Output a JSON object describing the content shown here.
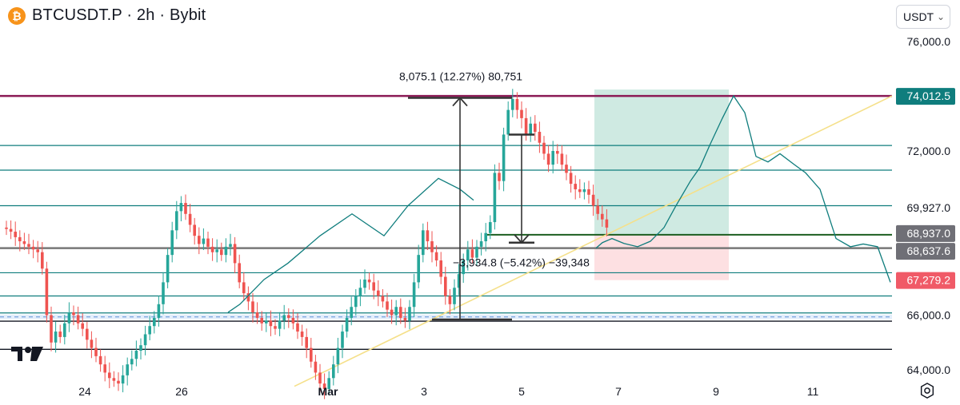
{
  "header": {
    "symbol_icon": "bitcoin-icon",
    "title": "BTCUSDT.P · 2h · Bybit"
  },
  "currency_selector": {
    "label": "USDT",
    "icon": "chevron-down-icon"
  },
  "settings_icon": "gear-icon",
  "colors": {
    "up": "#26a69a",
    "down": "#ef5350",
    "level": "#0f7d7d",
    "magenta": "#8b1a55",
    "trend": "#f5e08a",
    "target_zone": "#cfeae2",
    "stop_zone": "#fde0e2",
    "green_line": "#1b5e20",
    "dark": "#131722"
  },
  "chart_data": {
    "type": "candlestick",
    "x_tick_labels": [
      "24",
      "26",
      "Mar",
      "3",
      "5",
      "7",
      "9",
      "11"
    ],
    "y_tick_labels": [
      "76,000.0",
      "72,000.0",
      "69,927.0",
      "66,000.0",
      "64,000.0"
    ],
    "ylim": [
      63200,
      77200
    ],
    "price_badges": [
      {
        "label": "74,012.5",
        "value": 74012.5,
        "kind": "level"
      },
      {
        "label": "68,937.0",
        "value": 68937.0,
        "kind": "grey"
      },
      {
        "label": "68,637.6",
        "value": 68637.6,
        "kind": "grey"
      },
      {
        "label": "67,279.2",
        "value": 67279.2,
        "kind": "stop"
      }
    ],
    "horizontal_levels": [
      {
        "value": 74012.5,
        "color": "magenta"
      },
      {
        "value": 72200,
        "color": "level"
      },
      {
        "value": 71300,
        "color": "level"
      },
      {
        "value": 70000,
        "color": "level"
      },
      {
        "value": 68937.0,
        "color": "green"
      },
      {
        "value": 68450,
        "color": "grey"
      },
      {
        "value": 67550,
        "color": "level"
      },
      {
        "value": 66700,
        "color": "level"
      },
      {
        "value": 66080,
        "color": "level"
      },
      {
        "value": 65780,
        "color": "dark"
      },
      {
        "value": 64750,
        "color": "dark"
      }
    ],
    "support_band": [
      65850,
      66020
    ],
    "measure_up": {
      "label": "8,075.1 (12.27%) 80,751",
      "from": 65840,
      "to": 73940
    },
    "measure_down": {
      "label": "−3,934.8 (−5.42%) −39,348",
      "from": 72600,
      "to": 68650
    },
    "position": {
      "entry": 68937.0,
      "target": 74012.5,
      "stop": 67279.2
    },
    "candles": [
      [
        69200,
        69150
      ],
      [
        69150,
        69050
      ],
      [
        69050,
        68850
      ],
      [
        68850,
        68700
      ],
      [
        68700,
        68600
      ],
      [
        68600,
        68500
      ],
      [
        68500,
        68400
      ],
      [
        68400,
        68300
      ],
      [
        68300,
        67700
      ],
      [
        67700,
        66000
      ],
      [
        66000,
        65000
      ],
      [
        65000,
        65400
      ],
      [
        65400,
        65200
      ],
      [
        65200,
        65700
      ],
      [
        65700,
        66100
      ],
      [
        66100,
        66000
      ],
      [
        66000,
        65700
      ],
      [
        65700,
        65500
      ],
      [
        65500,
        65100
      ],
      [
        65100,
        64800
      ],
      [
        64800,
        64500
      ],
      [
        64500,
        64200
      ],
      [
        64200,
        63900
      ],
      [
        63900,
        63700
      ],
      [
        63700,
        63600
      ],
      [
        63600,
        63500
      ],
      [
        63500,
        63800
      ],
      [
        63800,
        64200
      ],
      [
        64200,
        64400
      ],
      [
        64400,
        64700
      ],
      [
        64700,
        64900
      ],
      [
        64900,
        65300
      ],
      [
        65300,
        65600
      ],
      [
        65600,
        65900
      ],
      [
        65900,
        66400
      ],
      [
        66400,
        67200
      ],
      [
        67200,
        68200
      ],
      [
        68200,
        69100
      ],
      [
        69100,
        69800
      ],
      [
        69800,
        70100
      ],
      [
        70100,
        69700
      ],
      [
        69700,
        69300
      ],
      [
        69300,
        68900
      ],
      [
        68900,
        68600
      ],
      [
        68600,
        68800
      ],
      [
        68800,
        68500
      ],
      [
        68500,
        68300
      ],
      [
        68300,
        68400
      ],
      [
        68400,
        68200
      ],
      [
        68200,
        68500
      ],
      [
        68500,
        68600
      ],
      [
        68600,
        67900
      ],
      [
        67900,
        67200
      ],
      [
        67200,
        66800
      ],
      [
        66800,
        66500
      ],
      [
        66500,
        66100
      ],
      [
        66100,
        65900
      ],
      [
        65900,
        65700
      ],
      [
        65700,
        65800
      ],
      [
        65800,
        65600
      ],
      [
        65600,
        65500
      ],
      [
        65500,
        65800
      ],
      [
        65800,
        66000
      ],
      [
        66000,
        65900
      ],
      [
        65900,
        65700
      ],
      [
        65700,
        65400
      ],
      [
        65400,
        65200
      ],
      [
        65200,
        64800
      ],
      [
        64800,
        64300
      ],
      [
        64300,
        63900
      ],
      [
        63900,
        63500
      ],
      [
        63500,
        63300
      ],
      [
        63300,
        63700
      ],
      [
        63700,
        64200
      ],
      [
        64200,
        64800
      ],
      [
        64800,
        65400
      ],
      [
        65400,
        65900
      ],
      [
        65900,
        66300
      ],
      [
        66300,
        66700
      ],
      [
        66700,
        67000
      ],
      [
        67000,
        67300
      ],
      [
        67300,
        67200
      ],
      [
        67200,
        66900
      ],
      [
        66900,
        66700
      ],
      [
        66700,
        66500
      ],
      [
        66500,
        66200
      ],
      [
        66200,
        66000
      ],
      [
        66000,
        66300
      ],
      [
        66300,
        65900
      ],
      [
        65900,
        65800
      ],
      [
        65800,
        66300
      ],
      [
        66300,
        67200
      ],
      [
        67200,
        68200
      ],
      [
        68200,
        69100
      ],
      [
        69100,
        68700
      ],
      [
        68700,
        68300
      ],
      [
        68300,
        68000
      ],
      [
        68000,
        67400
      ],
      [
        67400,
        66700
      ],
      [
        66700,
        66400
      ],
      [
        66400,
        67000
      ],
      [
        67000,
        67500
      ],
      [
        67500,
        68000
      ],
      [
        68000,
        68400
      ],
      [
        68400,
        68100
      ],
      [
        68100,
        68500
      ],
      [
        68500,
        68700
      ],
      [
        68700,
        69000
      ],
      [
        69000,
        69400
      ],
      [
        69400,
        71200
      ],
      [
        71200,
        70900
      ],
      [
        70900,
        72600
      ],
      [
        72600,
        73500
      ],
      [
        73500,
        73900
      ],
      [
        73900,
        73500
      ],
      [
        73500,
        73200
      ],
      [
        73200,
        72600
      ],
      [
        72600,
        73000
      ],
      [
        73000,
        72700
      ],
      [
        72700,
        72300
      ],
      [
        72300,
        71900
      ],
      [
        71900,
        71500
      ],
      [
        71500,
        72000
      ],
      [
        72000,
        71900
      ],
      [
        71900,
        71500
      ],
      [
        71500,
        71200
      ],
      [
        71200,
        70800
      ],
      [
        70800,
        70600
      ],
      [
        70600,
        70500
      ],
      [
        70500,
        70600
      ],
      [
        70600,
        70400
      ],
      [
        70400,
        70000
      ],
      [
        70000,
        69700
      ],
      [
        69700,
        69500
      ],
      [
        69500,
        69200
      ]
    ],
    "forecast_path": [
      [
        68450,
        0
      ],
      [
        68650,
        8
      ],
      [
        68800,
        20
      ],
      [
        68620,
        35
      ],
      [
        68500,
        52
      ],
      [
        68700,
        68
      ],
      [
        69200,
        85
      ],
      [
        70000,
        100
      ],
      [
        70900,
        118
      ],
      [
        71400,
        130
      ],
      [
        72200,
        142
      ],
      [
        73200,
        158
      ],
      [
        74012,
        172
      ],
      [
        73400,
        186
      ],
      [
        71800,
        200
      ],
      [
        71600,
        215
      ],
      [
        71900,
        230
      ],
      [
        71500,
        248
      ],
      [
        71200,
        262
      ],
      [
        70600,
        280
      ],
      [
        68800,
        300
      ],
      [
        68500,
        318
      ],
      [
        68600,
        334
      ],
      [
        68500,
        352
      ],
      [
        67200,
        368
      ]
    ]
  }
}
